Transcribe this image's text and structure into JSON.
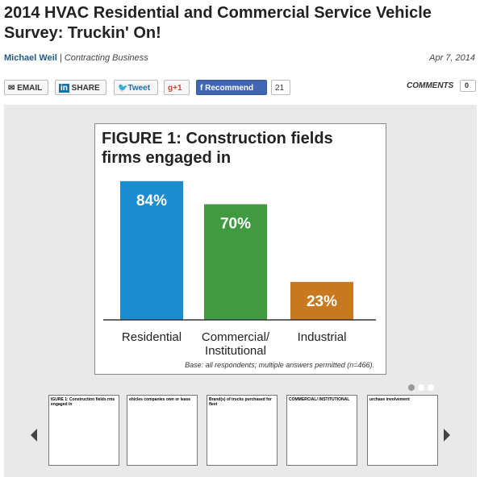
{
  "header": {
    "title": "2014 HVAC Residential and Commercial Service Vehicle Survey: Truckin' On!",
    "author": "Michael Weil",
    "source": "| Contracting Business",
    "date": "Apr 7, 2014"
  },
  "share": {
    "email": "EMAIL",
    "linkedin": "SHARE",
    "tweet": "Tweet",
    "gplus": "+1",
    "recommend": "Recommend",
    "recommend_count": 21,
    "comments": "COMMENTS",
    "comments_count": 0
  },
  "chart_data": {
    "type": "bar",
    "title": "FIGURE 1: Construction fields firms engaged in",
    "categories": [
      "Residential",
      "Commercial/\nInstitutional",
      "Industrial"
    ],
    "values": [
      84,
      70,
      23
    ],
    "value_labels": [
      "84%",
      "70%",
      "23%"
    ],
    "colors": [
      "#1b8dce",
      "#3f9a40",
      "#c8781f"
    ],
    "ylim": [
      0,
      100
    ],
    "note": "Base: all respondents; multiple answers permitted (n=466)."
  },
  "thumbnails": [
    {
      "caption": "IGURE 1: Construction fields rms engaged in"
    },
    {
      "caption": "ehicles companies own or lease"
    },
    {
      "caption": "Brand(s) of trucks purchased for fleet"
    },
    {
      "caption": "COMMERCIAL/ INSTITUTIONAL"
    },
    {
      "caption": "urchase involvement"
    }
  ]
}
